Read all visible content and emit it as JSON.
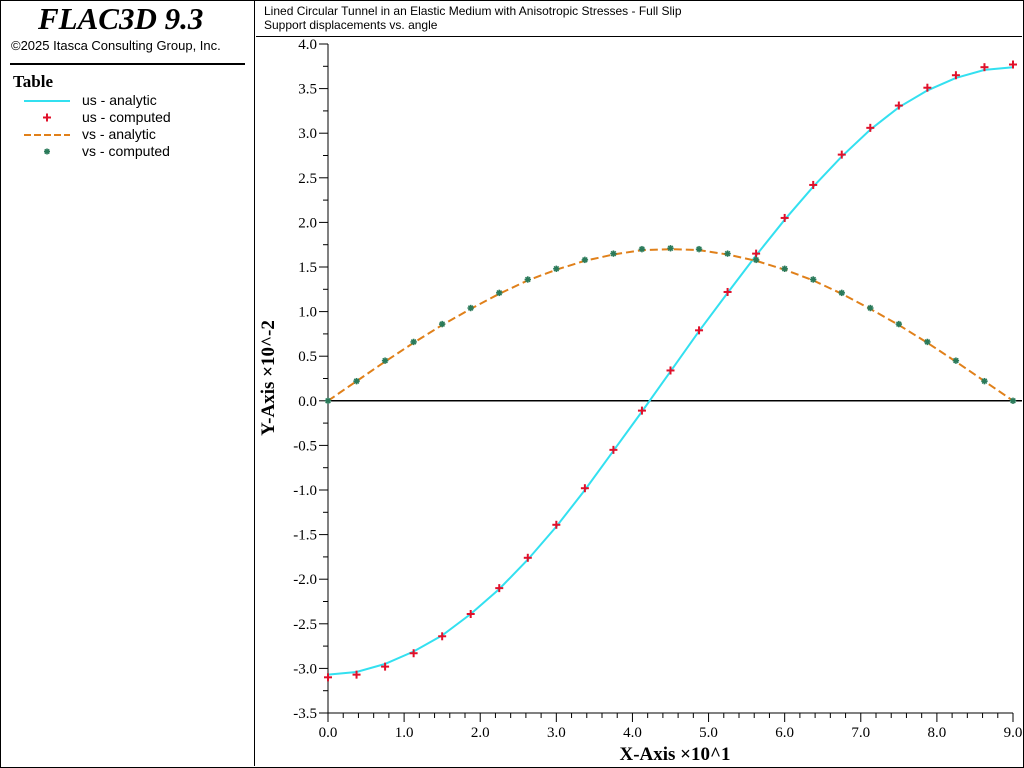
{
  "app": {
    "title": "FLAC3D 9.3",
    "copyright": "©2025 Itasca Consulting Group, Inc."
  },
  "legend": {
    "title": "Table",
    "items": [
      {
        "label": "us - analytic",
        "style": "line",
        "color": "#33e0f0"
      },
      {
        "label": "us - computed",
        "style": "plus",
        "color": "#e0102a"
      },
      {
        "label": "vs - analytic",
        "style": "dashed-line",
        "color": "#e0801a"
      },
      {
        "label": "vs - computed",
        "style": "star",
        "color": "#2a7a5a"
      }
    ]
  },
  "chart_data": {
    "type": "line",
    "title": "Lined Circular Tunnel in an Elastic Medium with Anisotropic Stresses - Full Slip",
    "subtitle": "Support displacements vs. angle",
    "xlabel": "X-Axis ×10^1",
    "ylabel": "Y-Axis ×10^-2",
    "xlim": [
      0.0,
      9.0
    ],
    "ylim": [
      -3.5,
      4.0
    ],
    "x_ticks": [
      "0.0",
      "1.0",
      "2.0",
      "3.0",
      "4.0",
      "5.0",
      "6.0",
      "7.0",
      "8.0",
      "9.0"
    ],
    "y_ticks": [
      "-3.5",
      "-3.0",
      "-2.5",
      "-2.0",
      "-1.5",
      "-1.0",
      "-0.5",
      "0.0",
      "0.5",
      "1.0",
      "1.5",
      "2.0",
      "2.5",
      "3.0",
      "3.5",
      "4.0"
    ],
    "zero_line": true,
    "grid": false,
    "series": [
      {
        "name": "us - analytic",
        "kind": "line",
        "color": "#33e0f0",
        "x": [
          0.0,
          0.375,
          0.75,
          1.125,
          1.5,
          1.875,
          2.25,
          2.625,
          3.0,
          3.375,
          3.75,
          4.125,
          4.5,
          4.875,
          5.25,
          5.625,
          6.0,
          6.375,
          6.75,
          7.125,
          7.5,
          7.875,
          8.25,
          8.625,
          9.0
        ],
        "y": [
          -3.07,
          -3.04,
          -2.95,
          -2.81,
          -2.63,
          -2.39,
          -2.11,
          -1.78,
          -1.41,
          -1.0,
          -0.56,
          -0.12,
          0.33,
          0.78,
          1.21,
          1.63,
          2.03,
          2.4,
          2.74,
          3.04,
          3.29,
          3.48,
          3.62,
          3.71,
          3.74
        ]
      },
      {
        "name": "us - computed",
        "kind": "plus",
        "color": "#e0102a",
        "x": [
          0.0,
          0.375,
          0.75,
          1.125,
          1.5,
          1.875,
          2.25,
          2.625,
          3.0,
          3.375,
          3.75,
          4.125,
          4.5,
          4.875,
          5.25,
          5.625,
          6.0,
          6.375,
          6.75,
          7.125,
          7.5,
          7.875,
          8.25,
          8.625,
          9.0
        ],
        "y": [
          -3.1,
          -3.07,
          -2.98,
          -2.83,
          -2.64,
          -2.39,
          -2.1,
          -1.76,
          -1.39,
          -0.98,
          -0.55,
          -0.11,
          0.34,
          0.79,
          1.22,
          1.65,
          2.05,
          2.42,
          2.76,
          3.06,
          3.31,
          3.51,
          3.65,
          3.74,
          3.77
        ]
      },
      {
        "name": "vs - analytic",
        "kind": "dashed-line",
        "color": "#e0801a",
        "x": [
          0.0,
          0.375,
          0.75,
          1.125,
          1.5,
          1.875,
          2.25,
          2.625,
          3.0,
          3.375,
          3.75,
          4.125,
          4.5,
          4.875,
          5.25,
          5.625,
          6.0,
          6.375,
          6.75,
          7.125,
          7.5,
          7.875,
          8.25,
          8.625,
          9.0
        ],
        "y": [
          0.0,
          0.22,
          0.44,
          0.65,
          0.85,
          1.03,
          1.2,
          1.35,
          1.47,
          1.57,
          1.64,
          1.69,
          1.7,
          1.69,
          1.64,
          1.57,
          1.47,
          1.35,
          1.2,
          1.03,
          0.85,
          0.65,
          0.44,
          0.22,
          0.0
        ]
      },
      {
        "name": "vs - computed",
        "kind": "star",
        "color": "#2a7a5a",
        "x": [
          0.0,
          0.375,
          0.75,
          1.125,
          1.5,
          1.875,
          2.25,
          2.625,
          3.0,
          3.375,
          3.75,
          4.125,
          4.5,
          4.875,
          5.25,
          5.625,
          6.0,
          6.375,
          6.75,
          7.125,
          7.5,
          7.875,
          8.25,
          8.625,
          9.0
        ],
        "y": [
          0.0,
          0.22,
          0.45,
          0.66,
          0.86,
          1.04,
          1.21,
          1.36,
          1.48,
          1.58,
          1.65,
          1.7,
          1.71,
          1.7,
          1.65,
          1.58,
          1.48,
          1.36,
          1.21,
          1.04,
          0.86,
          0.66,
          0.45,
          0.22,
          0.0
        ]
      }
    ]
  }
}
